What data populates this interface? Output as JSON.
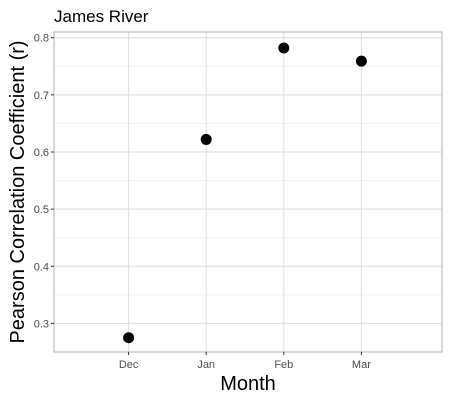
{
  "chart_data": {
    "type": "scatter",
    "title": "James River",
    "xlabel": "Month",
    "ylabel": "Pearson Correlation Coefficient (r)",
    "categories": [
      "Dec",
      "Jan",
      "Feb",
      "Mar"
    ],
    "values": [
      0.275,
      0.622,
      0.782,
      0.759
    ],
    "ylim": [
      0.25,
      0.81
    ],
    "yticks": [
      0.3,
      0.4,
      0.5,
      0.6,
      0.7,
      0.8
    ],
    "ytick_labels": [
      "0.3",
      "0.4",
      "0.5",
      "0.6",
      "0.7",
      "0.8"
    ],
    "grid": true,
    "point_color": "#000000"
  }
}
